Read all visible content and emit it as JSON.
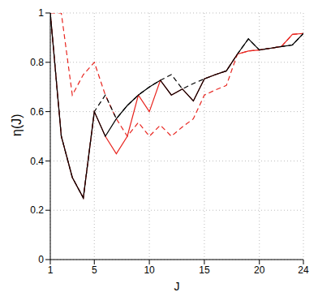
{
  "chart_data": {
    "type": "line",
    "xlabel": "J",
    "ylabel": "η(J)",
    "x": [
      1,
      2,
      3,
      4,
      5,
      6,
      7,
      8,
      9,
      10,
      11,
      12,
      13,
      14,
      15,
      16,
      17,
      18,
      19,
      20,
      21,
      22,
      23,
      24
    ],
    "xlim": [
      1,
      24
    ],
    "xticks": [
      1,
      5,
      10,
      15,
      20,
      24
    ],
    "ylim": [
      0,
      1
    ],
    "yticks": [
      0,
      0.2,
      0.4,
      0.6,
      0.8,
      1
    ],
    "grid": true,
    "series": [
      {
        "color": "#e8251f",
        "line_style": "dashed",
        "values": [
          1.0,
          1.0,
          0.667,
          0.75,
          0.8,
          0.667,
          0.571,
          0.5,
          0.556,
          0.5,
          0.545,
          0.5,
          0.538,
          0.571,
          0.667,
          0.688,
          0.706,
          0.833,
          0.846,
          0.85,
          0.857,
          0.864,
          0.913,
          0.917
        ]
      },
      {
        "color": "#000000",
        "line_style": "dashed",
        "values": [
          1.0,
          0.5,
          0.333,
          0.25,
          0.6,
          0.667,
          0.571,
          0.625,
          0.667,
          0.7,
          0.727,
          0.75,
          0.692,
          0.714,
          0.733,
          0.75,
          0.765,
          0.833,
          0.895,
          0.85,
          0.857,
          0.864,
          0.87,
          0.917
        ]
      },
      {
        "color": "#e8251f",
        "line_style": "solid",
        "values": [
          1.0,
          0.5,
          0.333,
          0.25,
          0.6,
          0.5,
          0.429,
          0.5,
          0.667,
          0.6,
          0.727,
          0.667,
          0.692,
          0.643,
          0.733,
          0.75,
          0.765,
          0.833,
          0.846,
          0.85,
          0.857,
          0.864,
          0.913,
          0.917
        ]
      },
      {
        "color": "#000000",
        "line_style": "solid",
        "values": [
          1.0,
          0.5,
          0.333,
          0.25,
          0.6,
          0.5,
          0.571,
          0.625,
          0.667,
          0.7,
          0.727,
          0.667,
          0.692,
          0.643,
          0.733,
          0.75,
          0.765,
          0.833,
          0.895,
          0.85,
          0.857,
          0.864,
          0.87,
          0.917
        ]
      }
    ]
  }
}
